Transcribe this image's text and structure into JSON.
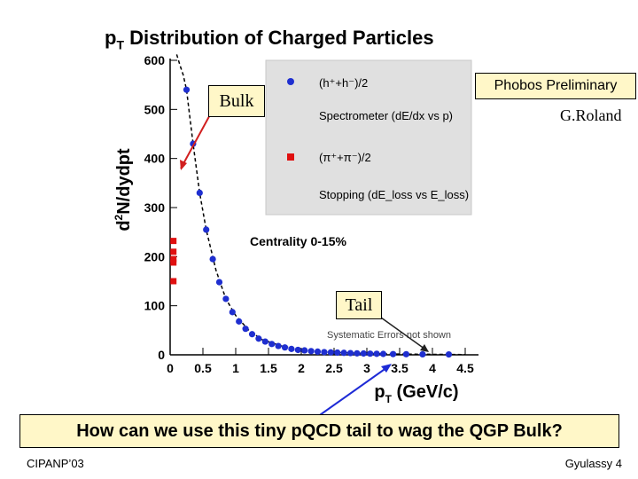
{
  "slide": {
    "title_main": "p",
    "title_sub": "T",
    "title_rest": " Distribution of Charged Particles",
    "bulk_label": "Bulk",
    "tail_label": "Tail",
    "phobos_label": "Phobos Preliminary",
    "author_credit": "G.Roland",
    "question": "How can we use this tiny pQCD tail to wag the QGP Bulk?",
    "footer_left": "CIPANP’03",
    "footer_right": "Gyulassy 4",
    "colors": {
      "callout_fill": "#fff7c8",
      "arrow": "#d11f1f",
      "tail_arrow": "#1e2bd6"
    }
  },
  "chart_data": {
    "type": "scatter",
    "ylabel_main": "d",
    "ylabel_sup": "2",
    "ylabel_rest": "N/dydpt",
    "xlabel_main": "p",
    "xlabel_sub": "T",
    "xlabel_rest": " (GeV/c)",
    "xlim": [
      0,
      4.5
    ],
    "ylim": [
      0,
      600
    ],
    "x_ticks": [
      0,
      0.5,
      1,
      1.5,
      2,
      2.5,
      3,
      3.5,
      4,
      4.5
    ],
    "x_tick_labels": [
      "0",
      "0.5",
      "1",
      "1.5",
      "2",
      "2.5",
      "3",
      "3.5",
      "4",
      "4.5"
    ],
    "y_ticks": [
      0,
      100,
      200,
      300,
      400,
      500,
      600
    ],
    "y_tick_labels": [
      "0",
      "100",
      "200",
      "300",
      "400",
      "500",
      "600"
    ],
    "centrality_label": "Centrality 0-15%",
    "systematic_note": "Systematic Errors not shown",
    "legend": {
      "entry1_label": "(h⁺+h⁻)/2",
      "entry1_desc": "Spectrometer (dE/dx vs p)",
      "entry2_label": "(π⁺+π⁻)/2",
      "entry2_desc": "Stopping (dE_loss vs E_loss)",
      "entry1_color": "#1f2fd0",
      "entry2_color": "#e01010"
    },
    "series": [
      {
        "color": "#1f2fd0",
        "marker": "circle",
        "x": [
          0.25,
          0.35,
          0.45,
          0.55,
          0.65,
          0.75,
          0.85,
          0.95,
          1.05,
          1.15,
          1.25,
          1.35,
          1.45,
          1.55,
          1.65,
          1.75,
          1.85,
          1.95,
          2.05,
          2.15,
          2.25,
          2.35,
          2.45,
          2.55,
          2.65,
          2.75,
          2.85,
          2.95,
          3.05,
          3.15,
          3.25,
          3.4,
          3.6,
          3.85,
          4.25
        ],
        "y": [
          540,
          430,
          330,
          255,
          195,
          148,
          114,
          87,
          68,
          53,
          42,
          33,
          27,
          22,
          18,
          15,
          12,
          10,
          9,
          7.5,
          6.5,
          5.5,
          5,
          4.5,
          4,
          3.5,
          3,
          2.7,
          2.4,
          2.1,
          1.8,
          1.5,
          1.2,
          1,
          0.8
        ]
      },
      {
        "color": "#e01010",
        "marker": "square",
        "x": [
          0.05,
          0.05,
          0.05,
          0.05,
          0.05
        ],
        "y": [
          232,
          210,
          195,
          188,
          150
        ]
      }
    ],
    "fit_curve": {
      "style": "dashed",
      "x": [
        0.1,
        0.15,
        0.2,
        0.25,
        0.35,
        0.45,
        0.55,
        0.7,
        0.85,
        1.0,
        1.2,
        1.4,
        1.7,
        2.0,
        2.5,
        3.0,
        3.5,
        4.5
      ],
      "y": [
        612,
        590,
        570,
        540,
        430,
        330,
        255,
        172,
        114,
        80,
        50,
        31,
        18,
        10,
        5,
        2.7,
        1.5,
        0.5
      ]
    }
  }
}
